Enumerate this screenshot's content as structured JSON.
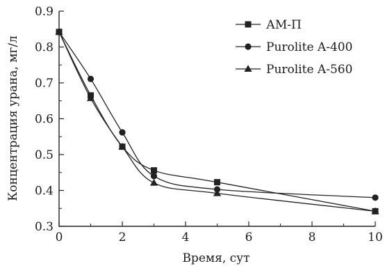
{
  "chart_data": {
    "type": "line",
    "xlabel": "Время, сут",
    "ylabel": "Концентрация урана, мг/л",
    "xlim": [
      0,
      10
    ],
    "ylim": [
      0.3,
      0.9
    ],
    "x_ticks": [
      "0",
      "2",
      "4",
      "6",
      "8",
      "10"
    ],
    "y_ticks": [
      "0.3",
      "0.4",
      "0.5",
      "0.6",
      "0.7",
      "0.8",
      "0.9"
    ],
    "grid": false,
    "legend_position": "top-right",
    "series": [
      {
        "name": "АМ-П",
        "marker": "square",
        "x": [
          0,
          1,
          2,
          3,
          5,
          10
        ],
        "y": [
          0.842,
          0.665,
          0.522,
          0.456,
          0.423,
          0.342
        ]
      },
      {
        "name": "Purolite A-400",
        "marker": "circle",
        "x": [
          0,
          1,
          2,
          3,
          5,
          10
        ],
        "y": [
          0.842,
          0.711,
          0.562,
          0.44,
          0.403,
          0.38
        ]
      },
      {
        "name": "Purolite A-560",
        "marker": "triangle",
        "x": [
          0,
          1,
          2,
          3,
          5,
          10
        ],
        "y": [
          0.842,
          0.657,
          0.522,
          0.421,
          0.392,
          0.342
        ]
      }
    ]
  }
}
